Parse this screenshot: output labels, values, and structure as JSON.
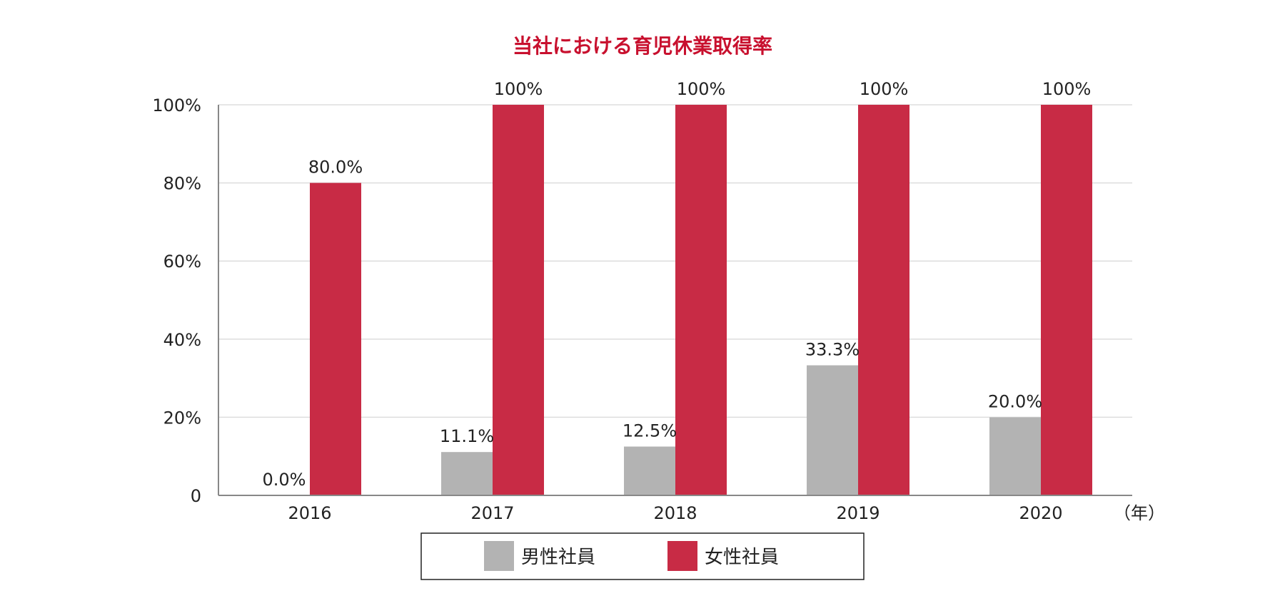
{
  "chart_data": {
    "type": "bar",
    "title": "当社における育児休業取得率",
    "title_color": "#c8102e",
    "categories": [
      "2016",
      "2017",
      "2018",
      "2019",
      "2020"
    ],
    "x_unit": "（年）",
    "y_ticks": [
      "0",
      "20%",
      "40%",
      "60%",
      "80%",
      "100%"
    ],
    "ylim": [
      0,
      100
    ],
    "grid": true,
    "series": [
      {
        "name": "男性社員",
        "color": "#b3b3b3",
        "values": [
          0,
          11.1,
          12.5,
          33.3,
          20.0
        ],
        "labels": [
          "0.0%",
          "11.1%",
          "12.5%",
          "33.3%",
          "20.0%"
        ]
      },
      {
        "name": "女性社員",
        "color": "#c82b45",
        "values": [
          80.0,
          100,
          100,
          100,
          100
        ],
        "labels": [
          "80.0%",
          "100%",
          "100%",
          "100%",
          "100%"
        ]
      }
    ],
    "legend_position": "bottom"
  }
}
